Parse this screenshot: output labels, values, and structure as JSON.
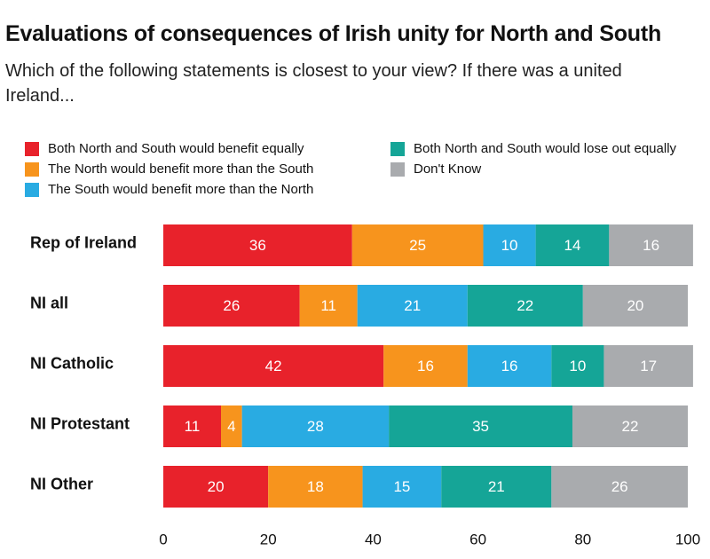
{
  "title": "Evaluations of consequences of Irish unity for North and South",
  "subtitle": "Which of the following statements is closest to your view? If there was a united Ireland...",
  "chart_data": {
    "type": "bar",
    "orientation": "horizontal",
    "stacked": true,
    "categories": [
      "Rep of Ireland",
      "NI all",
      "NI Catholic",
      "NI Protestant",
      "NI Other"
    ],
    "series": [
      {
        "name": "Both North and South would benefit equally",
        "color": "#e8222b",
        "values": [
          36,
          26,
          42,
          11,
          20
        ]
      },
      {
        "name": "The North would benefit more than the South",
        "color": "#f7941d",
        "values": [
          25,
          11,
          16,
          4,
          18
        ]
      },
      {
        "name": "The South would benefit more than the North",
        "color": "#29abe2",
        "values": [
          10,
          21,
          16,
          28,
          15
        ]
      },
      {
        "name": "Both North and South would lose out equally",
        "color": "#15a597",
        "values": [
          14,
          22,
          10,
          35,
          21
        ]
      },
      {
        "name": "Don't Know",
        "color": "#a9abae",
        "values": [
          16,
          20,
          17,
          22,
          26
        ]
      }
    ],
    "xlim": [
      0,
      100
    ],
    "xticks": [
      0,
      20,
      40,
      60,
      80,
      100
    ],
    "grid": false,
    "legend_position": "top"
  }
}
